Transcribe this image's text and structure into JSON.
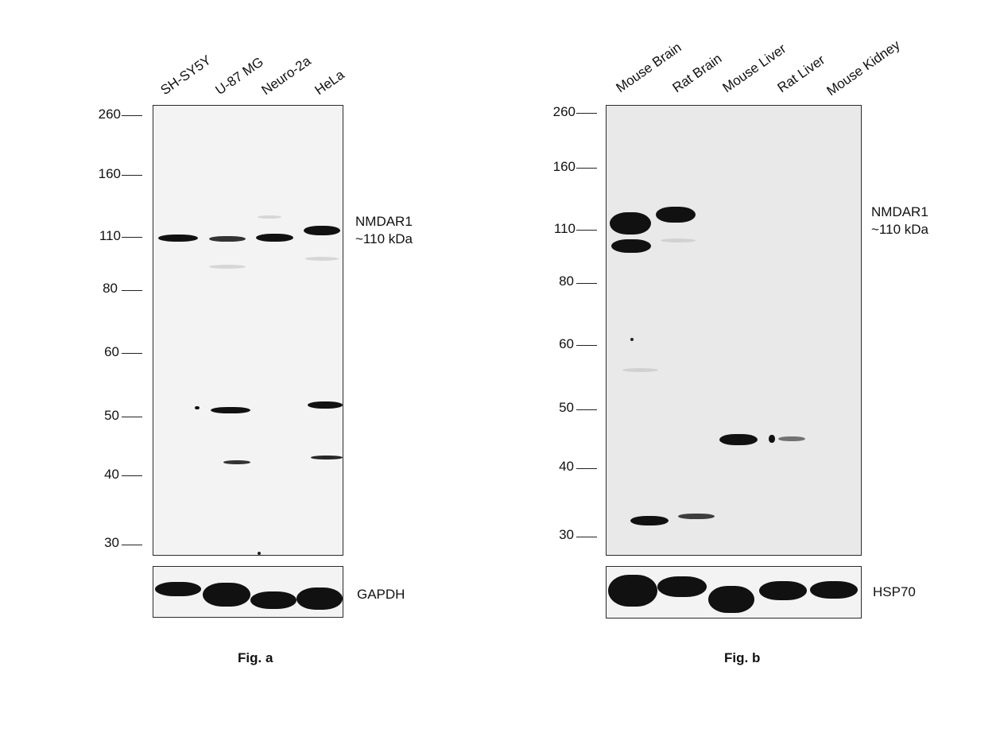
{
  "panel_a": {
    "lanes": [
      "SH-SY5Y",
      "U-87 MG",
      "Neuro-2a",
      "HeLa"
    ],
    "markers": [
      "260",
      "160",
      "110",
      "80",
      "60",
      "50",
      "40",
      "30"
    ],
    "target_line1": "NMDAR1",
    "target_line2": "~110 kDa",
    "loading_control": "GAPDH",
    "caption": "Fig. a"
  },
  "panel_b": {
    "lanes": [
      "Mouse Brain",
      "Rat Brain",
      "Mouse Liver",
      "Rat Liver",
      "Mouse Kidney"
    ],
    "markers": [
      "260",
      "160",
      "110",
      "80",
      "60",
      "50",
      "40",
      "30"
    ],
    "target_line1": "NMDAR1",
    "target_line2": "~110 kDa",
    "loading_control": "HSP70",
    "caption": "Fig. b"
  }
}
